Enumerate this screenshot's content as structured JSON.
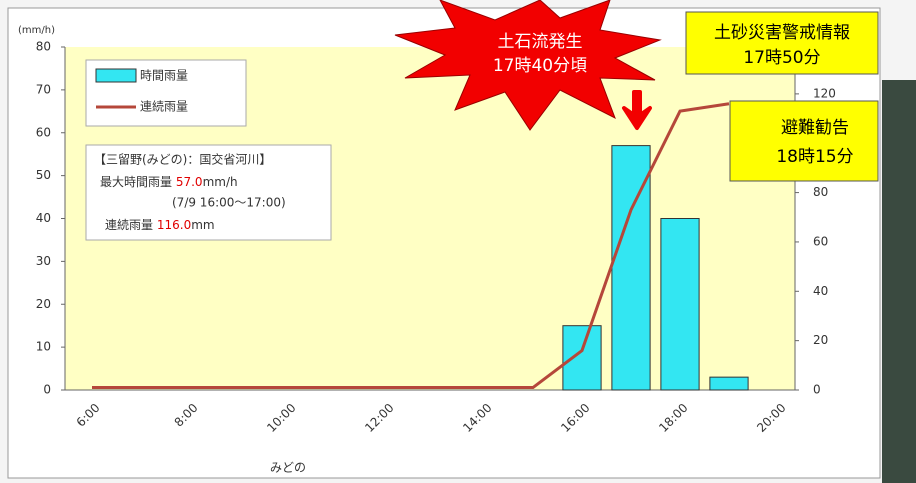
{
  "chart_data": {
    "type": "bar",
    "y_label": "(mm/h)",
    "categories": [
      "6:00",
      null,
      "8:00",
      null,
      "10:00",
      null,
      "12:00",
      null,
      "14:00",
      null,
      "16:00",
      null,
      "18:00",
      null,
      "20:00"
    ],
    "series": [
      {
        "name": "時間雨量",
        "type": "bar",
        "color": "#33e6f2",
        "values": [
          null,
          null,
          null,
          null,
          null,
          null,
          null,
          null,
          null,
          null,
          15,
          57,
          40,
          3,
          null
        ]
      },
      {
        "name": "連続雨量",
        "type": "line",
        "color": "#b5473a",
        "axis": "y2",
        "values": [
          1,
          1,
          1,
          1,
          1,
          1,
          1,
          1,
          1,
          1,
          16,
          73,
          113,
          116,
          null
        ]
      }
    ],
    "ylim": [
      0,
      80
    ],
    "yticks": [
      0,
      10,
      20,
      30,
      40,
      50,
      60,
      70,
      80
    ],
    "y2lim": [
      0,
      139
    ],
    "y2ticks": [
      0,
      20,
      40,
      60,
      80,
      100,
      120
    ],
    "x_caption": "みどの",
    "info_box": {
      "title": "【三留野(みどの)：国交省河川】",
      "max_label": "最大時間雨量",
      "max_value": "57.0",
      "max_unit": "mm/h",
      "period": "(7/9  16:00～17:00)",
      "total_label": "連続雨量",
      "total_value": "116.0",
      "total_unit": "mm"
    },
    "callouts": [
      {
        "lines": [
          "土石流発生",
          "17時40分頃"
        ]
      },
      {
        "lines": [
          "土砂災害警戒情報",
          "17時50分"
        ]
      },
      {
        "lines": [
          "避難勧告",
          "18時15分"
        ]
      }
    ]
  }
}
